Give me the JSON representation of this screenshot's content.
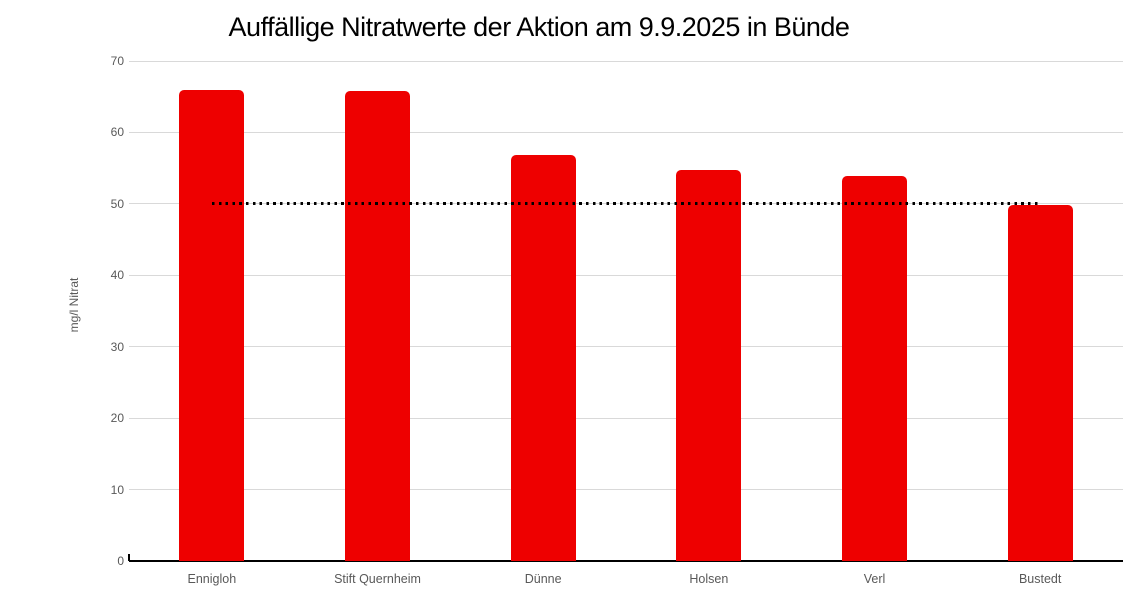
{
  "chart_data": {
    "type": "bar",
    "title": "Auffällige Nitratwerte der Aktion am 9.9.2025 in Bünde",
    "categories": [
      "Ennigloh",
      "Stift Quernheim",
      "Dünne",
      "Holsen",
      "Verl",
      "Bustedt"
    ],
    "values": [
      65.9,
      65.8,
      56.9,
      54.8,
      53.9,
      49.8
    ],
    "xlabel": "",
    "ylabel": "mg/l Nitrat",
    "ylim": [
      0,
      70
    ],
    "yticks": [
      0,
      10,
      20,
      30,
      40,
      50,
      60,
      70
    ],
    "grid": true,
    "legend": "none",
    "annotations": [
      {
        "name": "limit-line",
        "type": "dotted-line",
        "value": 50,
        "color": "#000000",
        "span": "first-to-last-category-center"
      }
    ],
    "colors": {
      "bar": "#ee0000",
      "gridline": "#d9d9d9",
      "axis_line": "#000000",
      "tick_label": "#595959",
      "axis_title_label": "#595959",
      "title": "#000000",
      "background": "#ffffff"
    }
  }
}
